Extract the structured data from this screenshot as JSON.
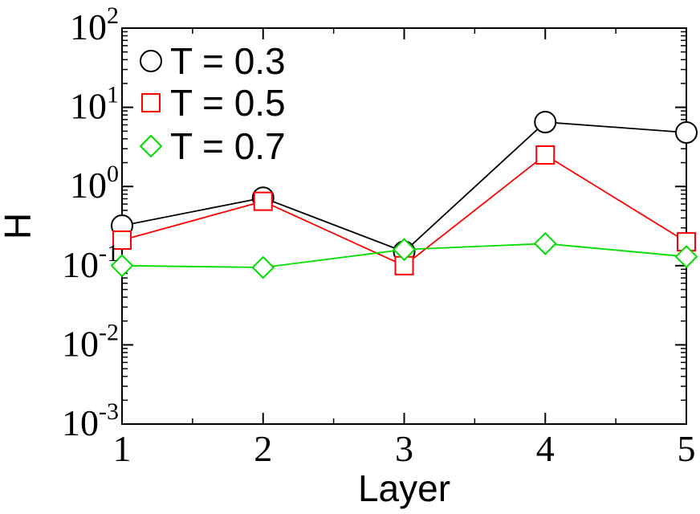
{
  "chart_data": {
    "type": "line",
    "xlabel": "Layer",
    "ylabel": "H",
    "x": [
      1,
      2,
      3,
      4,
      5
    ],
    "xlim": [
      1,
      5
    ],
    "ylim": [
      0.001,
      100
    ],
    "yscale": "log",
    "x_tick_labels": [
      "1",
      "2",
      "3",
      "4",
      "5"
    ],
    "y_tick_labels": [
      {
        "base": "10",
        "exp": "-3"
      },
      {
        "base": "10",
        "exp": "-2"
      },
      {
        "base": "10",
        "exp": "-1"
      },
      {
        "base": "10",
        "exp": "0"
      },
      {
        "base": "10",
        "exp": "1"
      },
      {
        "base": "10",
        "exp": "2"
      }
    ],
    "grid": false,
    "legend_position": "top-left",
    "series": [
      {
        "name": "T = 0.3",
        "marker": "circle",
        "color": "#000000",
        "values": [
          0.32,
          0.72,
          0.15,
          6.5,
          4.8
        ]
      },
      {
        "name": "T = 0.5",
        "marker": "square",
        "color": "#ff0000",
        "values": [
          0.21,
          0.65,
          0.1,
          2.5,
          0.2
        ]
      },
      {
        "name": "T = 0.7",
        "marker": "diamond",
        "color": "#00dd00",
        "values": [
          0.1,
          0.095,
          0.16,
          0.19,
          0.13
        ]
      }
    ]
  }
}
